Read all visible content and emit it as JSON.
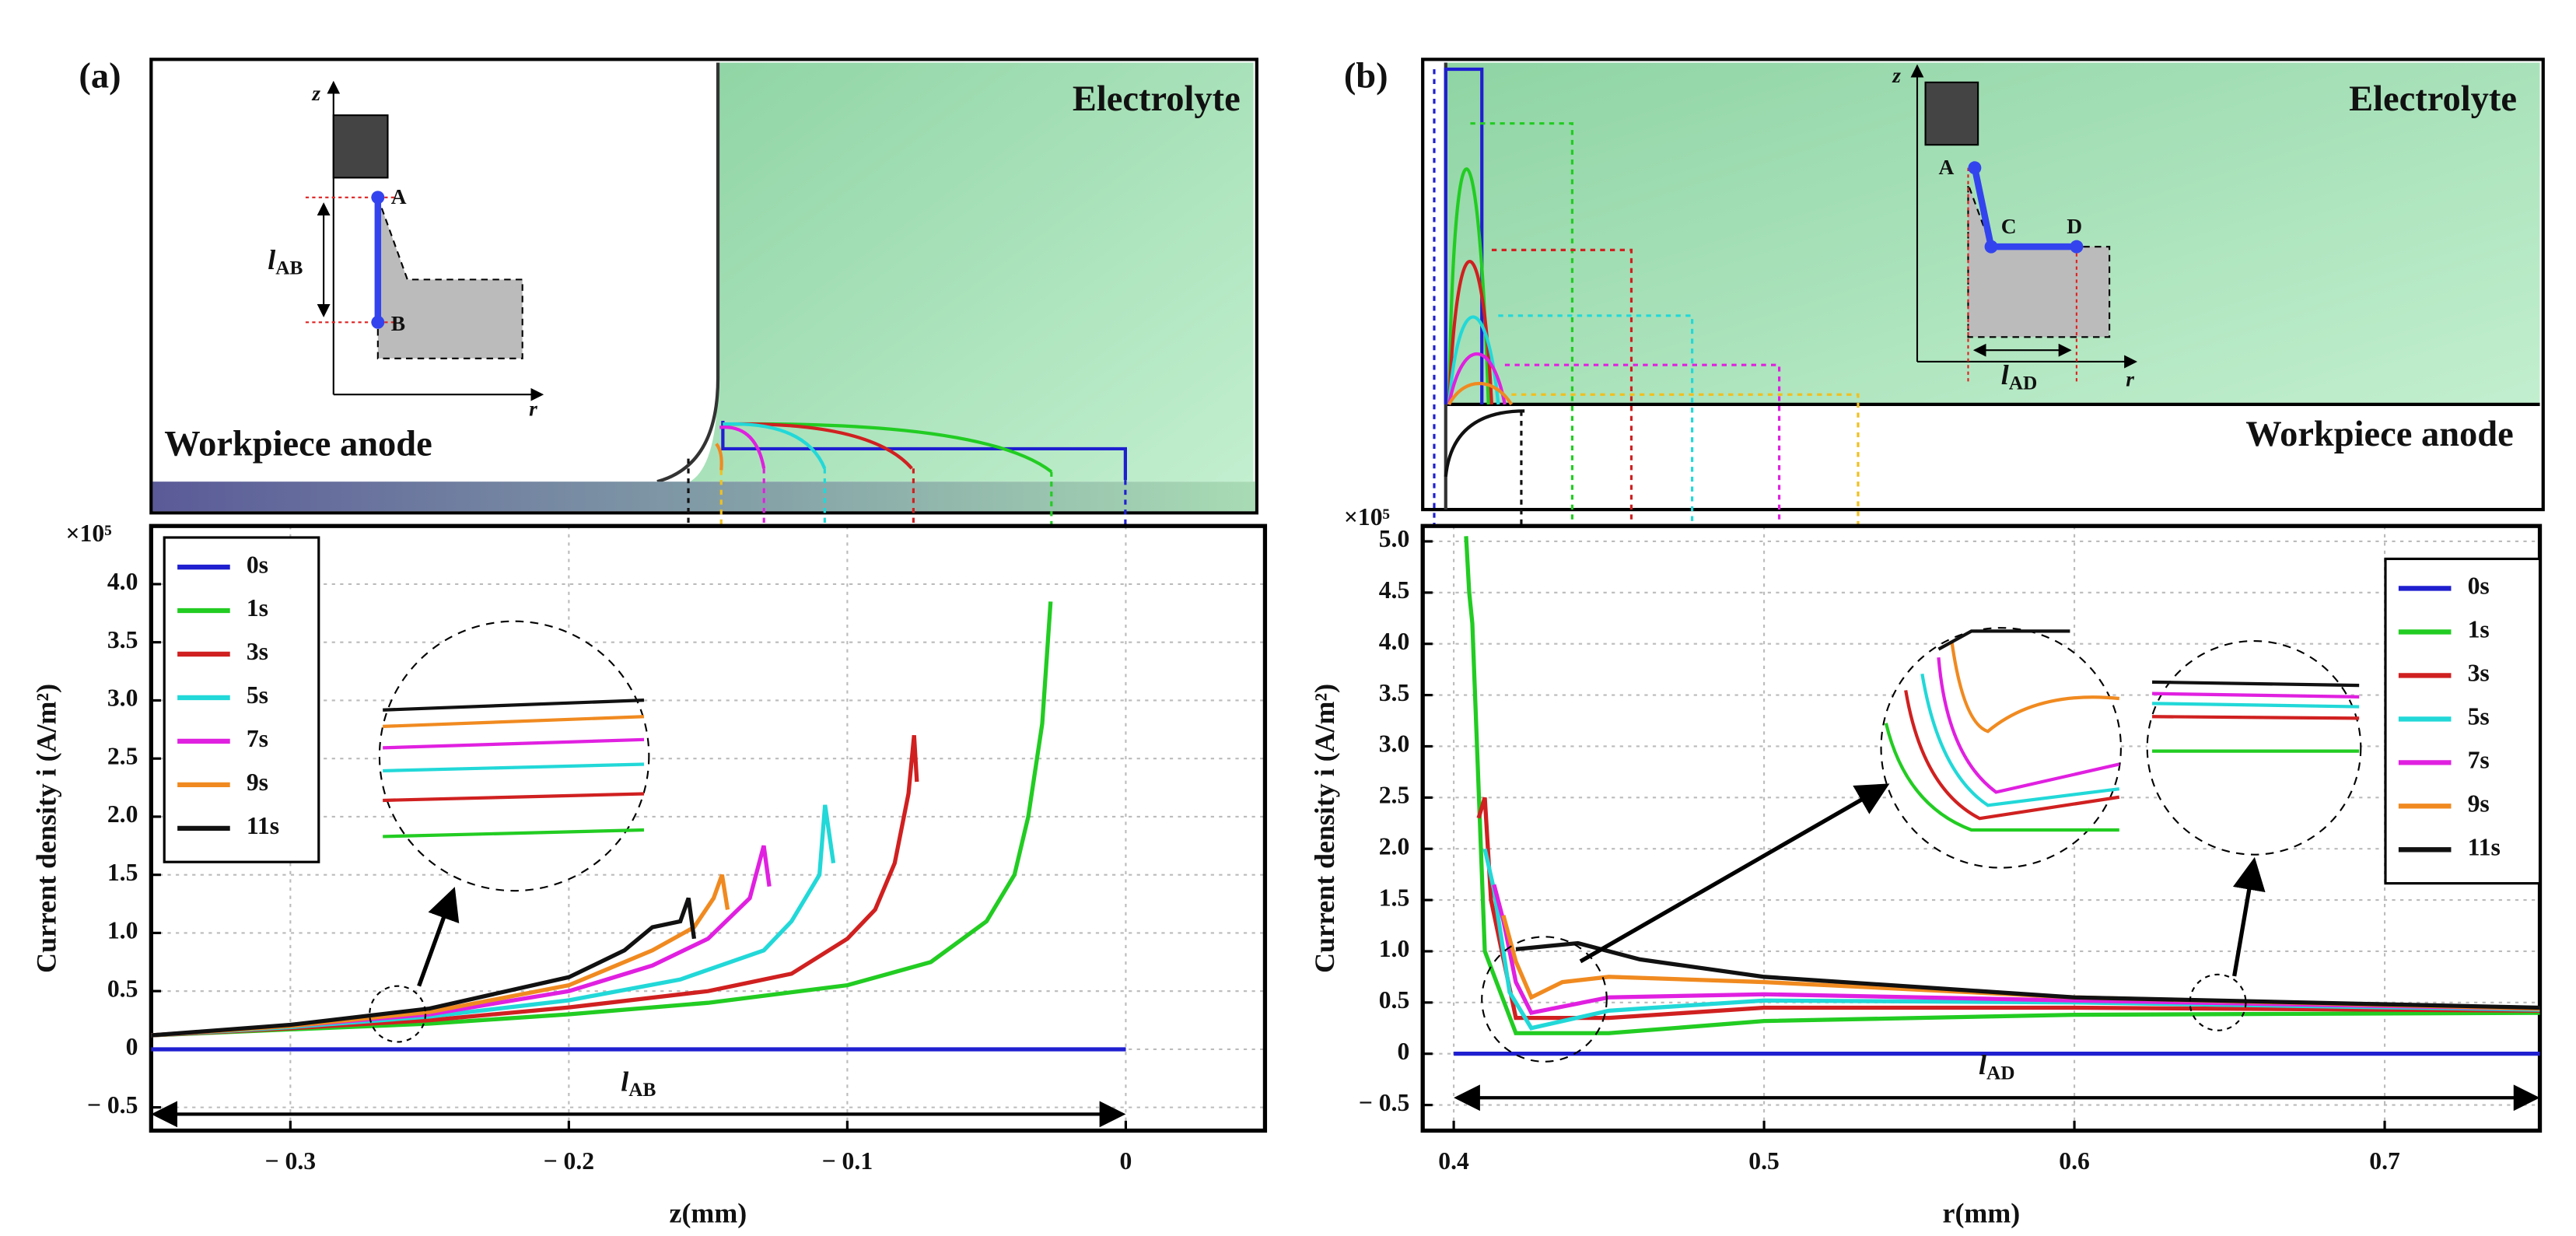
{
  "chart_data": [
    {
      "type": "line",
      "panel_label": "(a)",
      "region_labels": [
        "Electrolyte",
        "Workpiece anode"
      ],
      "inset_labels": [
        "z",
        "r",
        "A",
        "B"
      ],
      "span_label": {
        "symbol": "l",
        "subscript": "AB"
      },
      "xlabel": "z(mm)",
      "ylabel": "Current density i (A/m²)",
      "multiplier": "×10⁵",
      "xlim": [
        -0.35,
        0.05
      ],
      "ylim": [
        -0.7,
        4.5
      ],
      "xticks": [
        {
          "value": -0.3,
          "label": "− 0.3"
        },
        {
          "value": -0.2,
          "label": "− 0.2"
        },
        {
          "value": -0.1,
          "label": "− 0.1"
        },
        0
      ],
      "yticks": [
        {
          "value": -0.5,
          "label": "− 0.5"
        },
        0,
        0.5,
        {
          "value": 1,
          "label": "1.0"
        },
        1.5,
        {
          "value": 2,
          "label": "2.0"
        },
        2.5,
        {
          "value": 3,
          "label": "3.0"
        },
        3.5,
        {
          "value": 4,
          "label": "4.0"
        }
      ],
      "grid": true,
      "legend": "upper left",
      "series": [
        {
          "name": "0s",
          "color": "#1f1fd0",
          "x": [
            -0.35,
            0
          ],
          "values": [
            0,
            0
          ]
        },
        {
          "name": "1s",
          "color": "#22cc22",
          "x": [
            -0.35,
            -0.3,
            -0.25,
            -0.2,
            -0.15,
            -0.1,
            -0.07,
            -0.05,
            -0.04,
            -0.035,
            -0.03,
            -0.027
          ],
          "values": [
            0.12,
            0.17,
            0.22,
            0.3,
            0.4,
            0.55,
            0.75,
            1.1,
            1.5,
            2.0,
            2.8,
            3.85
          ]
        },
        {
          "name": "3s",
          "color": "#d02020",
          "x": [
            -0.35,
            -0.3,
            -0.25,
            -0.2,
            -0.15,
            -0.12,
            -0.1,
            -0.09,
            -0.083,
            -0.078,
            -0.076,
            -0.075
          ],
          "values": [
            0.12,
            0.18,
            0.25,
            0.36,
            0.5,
            0.65,
            0.95,
            1.2,
            1.6,
            2.2,
            2.7,
            2.3
          ]
        },
        {
          "name": "5s",
          "color": "#22d8d8",
          "x": [
            -0.35,
            -0.3,
            -0.25,
            -0.2,
            -0.16,
            -0.13,
            -0.12,
            -0.11,
            -0.108,
            -0.105
          ],
          "values": [
            0.12,
            0.19,
            0.28,
            0.42,
            0.6,
            0.85,
            1.1,
            1.5,
            2.1,
            1.6
          ]
        },
        {
          "name": "7s",
          "color": "#e020e0",
          "x": [
            -0.35,
            -0.3,
            -0.25,
            -0.2,
            -0.17,
            -0.15,
            -0.135,
            -0.13,
            -0.128
          ],
          "values": [
            0.12,
            0.2,
            0.3,
            0.5,
            0.72,
            0.95,
            1.3,
            1.75,
            1.4
          ]
        },
        {
          "name": "9s",
          "color": "#f08a20",
          "x": [
            -0.35,
            -0.3,
            -0.25,
            -0.2,
            -0.17,
            -0.155,
            -0.148,
            -0.145,
            -0.143
          ],
          "values": [
            0.12,
            0.2,
            0.32,
            0.55,
            0.85,
            1.05,
            1.3,
            1.5,
            1.2
          ]
        },
        {
          "name": "11s",
          "color": "#111111",
          "x": [
            -0.35,
            -0.3,
            -0.25,
            -0.2,
            -0.18,
            -0.17,
            -0.16,
            -0.157,
            -0.155
          ],
          "values": [
            0.12,
            0.21,
            0.35,
            0.62,
            0.85,
            1.05,
            1.1,
            1.3,
            0.95
          ]
        }
      ]
    },
    {
      "type": "line",
      "panel_label": "(b)",
      "region_labels": [
        "Electrolyte",
        "Workpiece anode"
      ],
      "inset_labels": [
        "z",
        "r",
        "A",
        "C",
        "D"
      ],
      "span_label": {
        "symbol": "l",
        "subscript": "AD"
      },
      "xlabel": "r(mm)",
      "ylabel": "Current density i (A/m²)",
      "multiplier": "×10⁵",
      "xlim": [
        0.39,
        0.75
      ],
      "ylim": [
        -0.75,
        5.15
      ],
      "xticks": [
        0.4,
        0.5,
        0.6,
        0.7
      ],
      "yticks": [
        {
          "value": -0.5,
          "label": "− 0.5"
        },
        0,
        0.5,
        {
          "value": 1,
          "label": "1.0"
        },
        1.5,
        {
          "value": 2,
          "label": "2.0"
        },
        2.5,
        {
          "value": 3,
          "label": "3.0"
        },
        3.5,
        {
          "value": 4,
          "label": "4.0"
        },
        4.5,
        {
          "value": 5,
          "label": "5.0"
        }
      ],
      "grid": true,
      "legend": "upper right",
      "series": [
        {
          "name": "0s",
          "color": "#1f1fd0",
          "x": [
            0.4,
            0.75
          ],
          "values": [
            0,
            0
          ]
        },
        {
          "name": "1s",
          "color": "#22cc22",
          "x": [
            0.404,
            0.405,
            0.406,
            0.41,
            0.42,
            0.45,
            0.5,
            0.6,
            0.75
          ],
          "values": [
            5.05,
            4.5,
            4.2,
            1.0,
            0.2,
            0.2,
            0.32,
            0.38,
            0.4
          ]
        },
        {
          "name": "3s",
          "color": "#d02020",
          "x": [
            0.408,
            0.41,
            0.412,
            0.42,
            0.45,
            0.5,
            0.6,
            0.75
          ],
          "values": [
            2.3,
            2.5,
            1.5,
            0.35,
            0.35,
            0.45,
            0.45,
            0.42
          ]
        },
        {
          "name": "5s",
          "color": "#22d8d8",
          "x": [
            0.41,
            0.413,
            0.418,
            0.425,
            0.45,
            0.5,
            0.6,
            0.75
          ],
          "values": [
            2.0,
            1.6,
            0.6,
            0.25,
            0.42,
            0.52,
            0.5,
            0.43
          ]
        },
        {
          "name": "7s",
          "color": "#e020e0",
          "x": [
            0.413,
            0.416,
            0.42,
            0.425,
            0.45,
            0.5,
            0.6,
            0.75
          ],
          "values": [
            1.65,
            1.3,
            0.7,
            0.4,
            0.55,
            0.58,
            0.52,
            0.44
          ]
        },
        {
          "name": "9s",
          "color": "#f08a20",
          "x": [
            0.416,
            0.42,
            0.425,
            0.435,
            0.45,
            0.5,
            0.6,
            0.75
          ],
          "values": [
            1.35,
            0.9,
            0.55,
            0.7,
            0.75,
            0.7,
            0.55,
            0.44
          ]
        },
        {
          "name": "11s",
          "color": "#111111",
          "x": [
            0.42,
            0.43,
            0.44,
            0.46,
            0.5,
            0.6,
            0.75
          ],
          "values": [
            1.02,
            1.05,
            1.08,
            0.92,
            0.75,
            0.55,
            0.45
          ]
        }
      ]
    }
  ]
}
